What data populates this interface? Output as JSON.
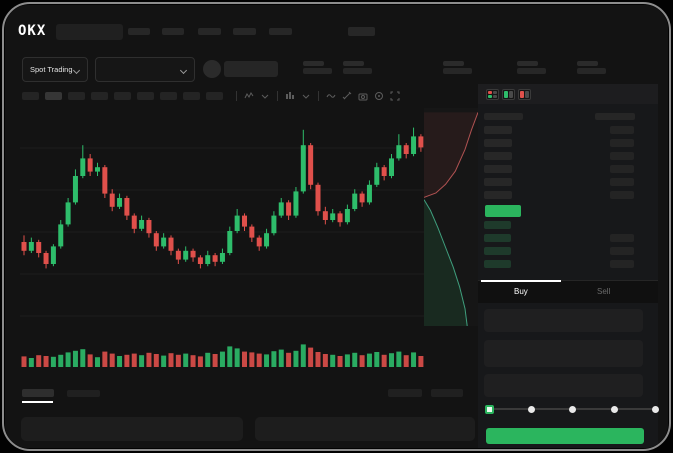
{
  "brand": {
    "logo_text": "OKX"
  },
  "market_selector": {
    "mode_label": "Spot Trading"
  },
  "toolbar": {
    "timeframe_slot_count": 10,
    "selected_timeframe_index": 1,
    "icons": [
      "candle-style-icon",
      "chevron-down-icon",
      "interval-icon",
      "chevron-down-icon",
      "line-tool-icon",
      "ruler-icon",
      "camera-icon",
      "settings-icon",
      "fullscreen-icon"
    ]
  },
  "orderbook": {
    "mode_icons": [
      "orderbook-all-icon",
      "orderbook-bids-icon",
      "orderbook-asks-icon"
    ],
    "ask_row_count": 6,
    "bid_row_count": 4,
    "row_step": 13
  },
  "trade_panel": {
    "tabs": [
      {
        "label": "Buy",
        "active": true
      },
      {
        "label": "Sell",
        "active": false
      }
    ],
    "field_count": 3,
    "slider_stops": 5,
    "slider_active_index": 0
  },
  "colors": {
    "green": "#2bb55e",
    "candle_green": "#2ebd6b",
    "candle_red": "#e0504b",
    "depth_ask_line": "#b05252",
    "depth_ask_fill": "rgba(190,80,80,0.10)",
    "depth_bid_line": "#3f9e7d",
    "depth_bid_fill": "rgba(46,189,107,0.12)",
    "bid_row_tint": "#1e3a2b"
  },
  "chart_data": {
    "type": "candlestick",
    "note_axis_labels_visible": false,
    "value_scale": [
      0,
      100
    ],
    "candles": [
      [
        40,
        43,
        34,
        36
      ],
      [
        36,
        42,
        35,
        40
      ],
      [
        40,
        41,
        33,
        35
      ],
      [
        35,
        36,
        28,
        30
      ],
      [
        30,
        39,
        29,
        38
      ],
      [
        38,
        50,
        37,
        48
      ],
      [
        48,
        60,
        47,
        58
      ],
      [
        58,
        73,
        57,
        70
      ],
      [
        70,
        84,
        69,
        78
      ],
      [
        78,
        80,
        70,
        72
      ],
      [
        72,
        76,
        70,
        74
      ],
      [
        74,
        75,
        60,
        62
      ],
      [
        62,
        64,
        54,
        56
      ],
      [
        56,
        62,
        55,
        60
      ],
      [
        60,
        61,
        50,
        52
      ],
      [
        52,
        53,
        44,
        46
      ],
      [
        46,
        52,
        45,
        50
      ],
      [
        50,
        51,
        42,
        44
      ],
      [
        44,
        45,
        36,
        38
      ],
      [
        38,
        44,
        37,
        42
      ],
      [
        42,
        43,
        34,
        36
      ],
      [
        36,
        37,
        30,
        32
      ],
      [
        32,
        38,
        31,
        36
      ],
      [
        36,
        37,
        31,
        33
      ],
      [
        33,
        34,
        28,
        30
      ],
      [
        30,
        36,
        29,
        34
      ],
      [
        34,
        35,
        29,
        31
      ],
      [
        31,
        37,
        30,
        35
      ],
      [
        35,
        47,
        34,
        45
      ],
      [
        45,
        55,
        44,
        52
      ],
      [
        52,
        53,
        45,
        47
      ],
      [
        47,
        48,
        40,
        42
      ],
      [
        42,
        43,
        36,
        38
      ],
      [
        38,
        46,
        37,
        44
      ],
      [
        44,
        54,
        43,
        52
      ],
      [
        52,
        60,
        51,
        58
      ],
      [
        58,
        59,
        50,
        52
      ],
      [
        52,
        65,
        51,
        63
      ],
      [
        63,
        91,
        62,
        84
      ],
      [
        84,
        85,
        64,
        66
      ],
      [
        66,
        67,
        52,
        54
      ],
      [
        54,
        56,
        48,
        50
      ],
      [
        50,
        55,
        49,
        53
      ],
      [
        53,
        54,
        47,
        49
      ],
      [
        49,
        57,
        48,
        55
      ],
      [
        55,
        64,
        54,
        62
      ],
      [
        62,
        63,
        56,
        58
      ],
      [
        58,
        68,
        57,
        66
      ],
      [
        66,
        76,
        65,
        74
      ],
      [
        74,
        75,
        68,
        70
      ],
      [
        70,
        80,
        69,
        78
      ],
      [
        78,
        89,
        77,
        84
      ],
      [
        84,
        85,
        78,
        80
      ],
      [
        80,
        92,
        79,
        88
      ],
      [
        88,
        89,
        81,
        83
      ]
    ],
    "volumes": [
      38,
      30,
      44,
      40,
      36,
      46,
      58,
      66,
      74,
      48,
      34,
      62,
      52,
      40,
      46,
      52,
      44,
      56,
      50,
      42,
      54,
      46,
      52,
      44,
      38,
      56,
      50,
      62,
      88,
      78,
      62,
      58,
      52,
      48,
      64,
      72,
      56,
      66,
      98,
      82,
      60,
      50,
      46,
      40,
      48,
      56,
      44,
      52,
      60,
      46,
      54,
      62,
      44,
      58,
      40
    ],
    "depth": {
      "asks": [
        [
          1.0,
          0.02
        ],
        [
          0.88,
          0.1
        ],
        [
          0.76,
          0.19
        ],
        [
          0.58,
          0.29
        ],
        [
          0.4,
          0.35
        ],
        [
          0.22,
          0.39
        ],
        [
          0.0,
          0.41
        ]
      ],
      "bids": [
        [
          0.0,
          0.42
        ],
        [
          0.12,
          0.47
        ],
        [
          0.26,
          0.55
        ],
        [
          0.4,
          0.64
        ],
        [
          0.54,
          0.73
        ],
        [
          0.66,
          0.82
        ],
        [
          0.76,
          0.92
        ],
        [
          0.8,
          1.0
        ]
      ]
    }
  }
}
